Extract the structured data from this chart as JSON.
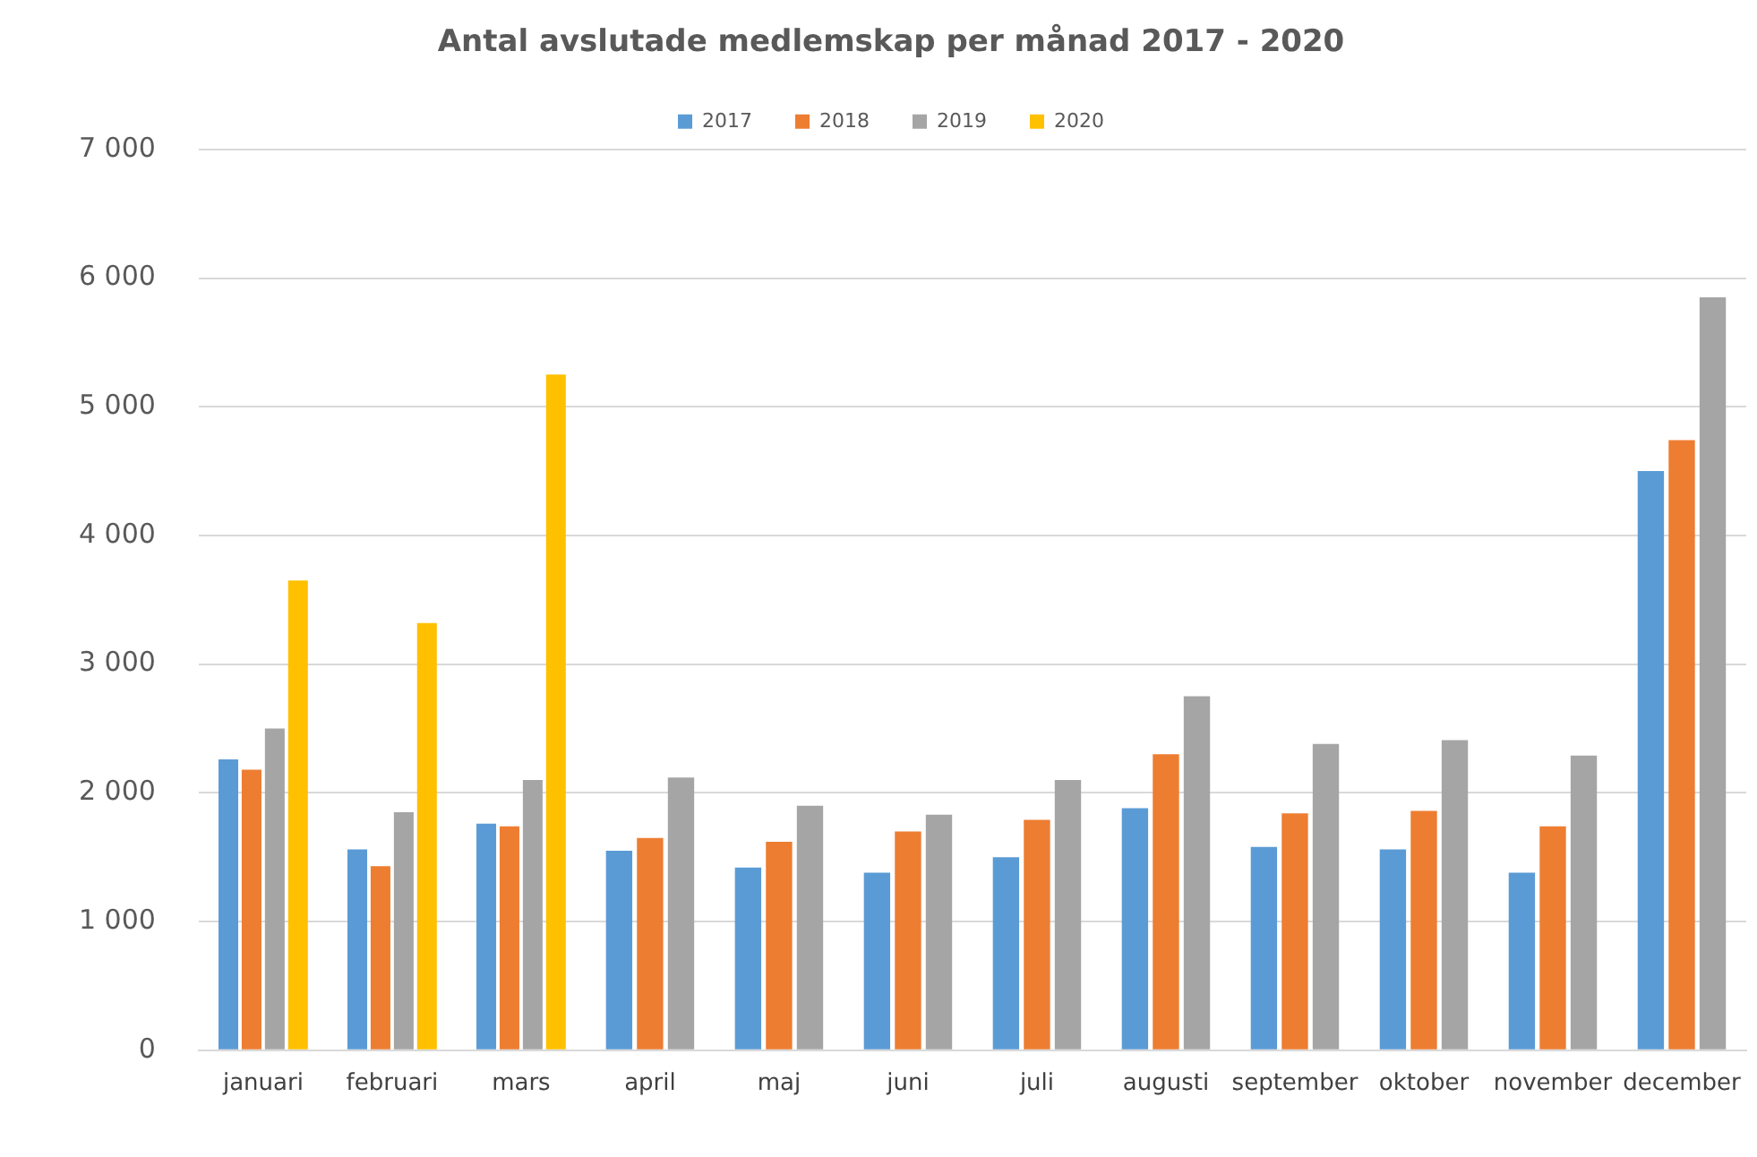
{
  "chart_data": {
    "type": "bar",
    "title": "Antal avslutade medlemskap per månad 2017 - 2020",
    "categories": [
      "januari",
      "februari",
      "mars",
      "april",
      "maj",
      "juni",
      "juli",
      "augusti",
      "september",
      "oktober",
      "november",
      "december"
    ],
    "series": [
      {
        "name": "2017",
        "color": "#5b9bd5",
        "values": [
          2260,
          1560,
          1760,
          1550,
          1420,
          1380,
          1500,
          1880,
          1580,
          1560,
          1380,
          4500
        ]
      },
      {
        "name": "2018",
        "color": "#ed7d31",
        "values": [
          2180,
          1430,
          1740,
          1650,
          1620,
          1700,
          1790,
          2300,
          1840,
          1860,
          1740,
          4740
        ]
      },
      {
        "name": "2019",
        "color": "#a5a5a5",
        "values": [
          2500,
          1850,
          2100,
          2120,
          1900,
          1830,
          2100,
          2750,
          2380,
          2410,
          2290,
          5850
        ]
      },
      {
        "name": "2020",
        "color": "#ffc000",
        "values": [
          3650,
          3320,
          5250,
          null,
          null,
          null,
          null,
          null,
          null,
          null,
          null,
          null
        ]
      }
    ],
    "ylim": [
      0,
      7000
    ],
    "yticks": [
      {
        "value": 0,
        "label": "0"
      },
      {
        "value": 1000,
        "label": "1 000"
      },
      {
        "value": 2000,
        "label": "2 000"
      },
      {
        "value": 3000,
        "label": "3 000"
      },
      {
        "value": 4000,
        "label": "4 000"
      },
      {
        "value": 5000,
        "label": "5 000"
      },
      {
        "value": 6000,
        "label": "6 000"
      },
      {
        "value": 7000,
        "label": "7 000"
      }
    ],
    "grid": "y",
    "legend": "top"
  }
}
